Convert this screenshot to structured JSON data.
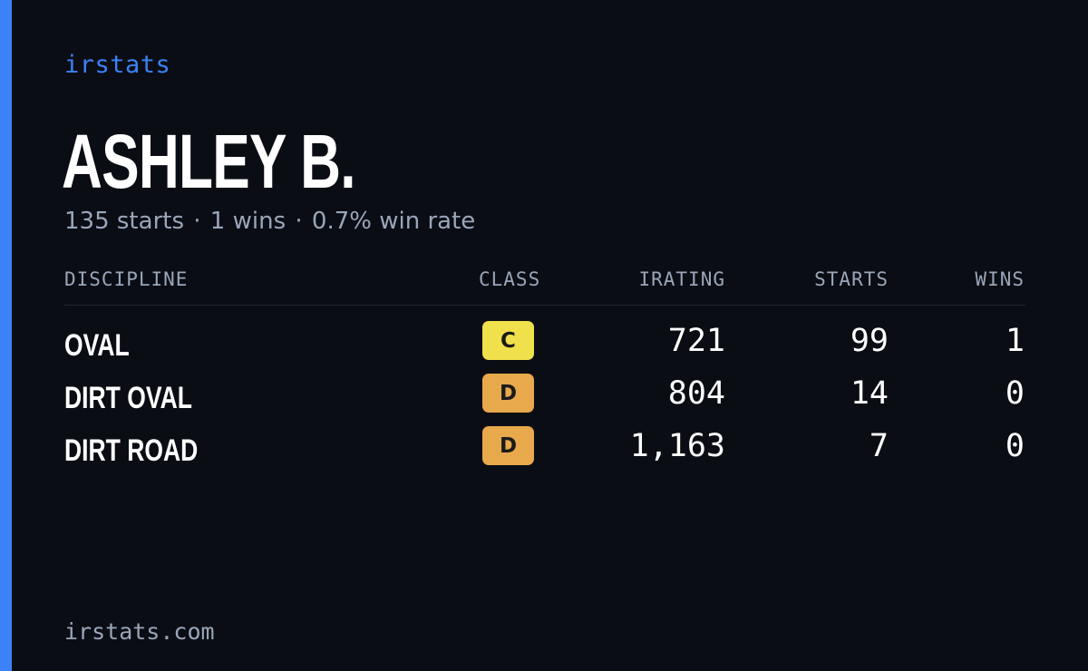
{
  "brand": "irstats",
  "driver": {
    "name": "ASHLEY B.",
    "starts_text": "135 starts",
    "wins_text": "1 wins",
    "win_rate_text": "0.7% win rate",
    "separator": "·"
  },
  "table": {
    "headers": {
      "discipline": "DISCIPLINE",
      "class": "CLASS",
      "irating": "IRATING",
      "starts": "STARTS",
      "wins": "WINS"
    },
    "rows": [
      {
        "discipline": "OVAL",
        "class": "C",
        "irating": "721",
        "starts": "99",
        "wins": "1"
      },
      {
        "discipline": "DIRT OVAL",
        "class": "D",
        "irating": "804",
        "starts": "14",
        "wins": "0"
      },
      {
        "discipline": "DIRT ROAD",
        "class": "D",
        "irating": "1,163",
        "starts": "7",
        "wins": "0"
      }
    ]
  },
  "class_colors": {
    "C": "#f0e04c",
    "D": "#e8a84c"
  },
  "colors": {
    "accent": "#3b82f6",
    "background": "#0a0d14",
    "muted_text": "#9aa6b8"
  },
  "footer": {
    "domain": "irstats.com"
  }
}
